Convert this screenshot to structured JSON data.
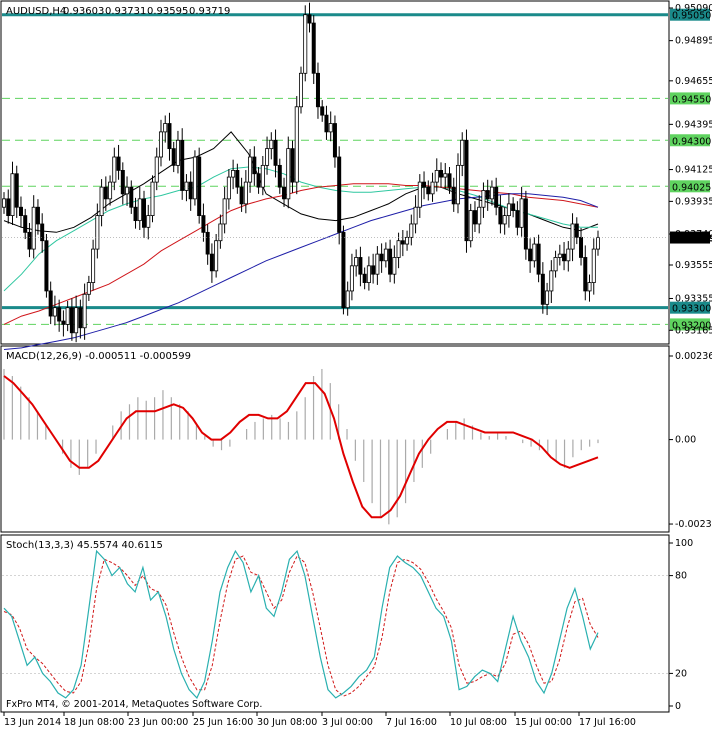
{
  "chart_data": {
    "type": "candlestick",
    "main": {
      "title": "AUDUSD,H4",
      "ohlc_header": [
        "0.93603",
        "0.93731",
        "0.93595",
        "0.93719"
      ],
      "ylim": [
        0.93095,
        0.9509
      ],
      "y_ticks": [
        "0.95090",
        "0.94895",
        "0.94655",
        "0.94395",
        "0.94125",
        "0.93935",
        "0.93740",
        "0.93555",
        "0.93355",
        "0.93165"
      ],
      "levels": [
        {
          "value": 0.9505,
          "label": "0.95050",
          "style": "thick",
          "color": "#1a8a8a"
        },
        {
          "value": 0.9455,
          "label": "0.94550",
          "style": "dashed",
          "color": "#5fd35f"
        },
        {
          "value": 0.943,
          "label": "0.94300",
          "style": "dashed",
          "color": "#5fd35f"
        },
        {
          "value": 0.94025,
          "label": "0.94025",
          "style": "dashed",
          "color": "#5fd35f"
        },
        {
          "value": 0.933,
          "label": "0.93300",
          "style": "thick",
          "color": "#1a8a8a"
        },
        {
          "value": 0.932,
          "label": "0.93200",
          "style": "dashed",
          "color": "#5fd35f"
        }
      ],
      "current_price": {
        "value": 0.93719,
        "label": "0.93719"
      },
      "close_series": [
        0.9395,
        0.9385,
        0.941,
        0.939,
        0.9385,
        0.9375,
        0.9365,
        0.939,
        0.938,
        0.937,
        0.934,
        0.9325,
        0.933,
        0.9322,
        0.932,
        0.933,
        0.9315,
        0.933,
        0.9318,
        0.9338,
        0.9345,
        0.9365,
        0.9385,
        0.9402,
        0.9395,
        0.9405,
        0.942,
        0.9412,
        0.9398,
        0.9402,
        0.939,
        0.9382,
        0.9395,
        0.9378,
        0.9385,
        0.9405,
        0.942,
        0.9435,
        0.944,
        0.9425,
        0.9415,
        0.943,
        0.94,
        0.9405,
        0.9395,
        0.942,
        0.9385,
        0.9375,
        0.9362,
        0.9352,
        0.937,
        0.938,
        0.9395,
        0.9408,
        0.9412,
        0.9402,
        0.9392,
        0.9405,
        0.942,
        0.941,
        0.9402,
        0.9415,
        0.9425,
        0.943,
        0.9415,
        0.9402,
        0.9395,
        0.9425,
        0.9405,
        0.945,
        0.947,
        0.9505,
        0.95,
        0.947,
        0.945,
        0.9445,
        0.9435,
        0.944,
        0.942,
        0.9375,
        0.933,
        0.934,
        0.9355,
        0.936,
        0.935,
        0.9345,
        0.9355,
        0.935,
        0.9362,
        0.9358,
        0.9365,
        0.935,
        0.936,
        0.937,
        0.9368,
        0.9372,
        0.938,
        0.939,
        0.9405,
        0.9402,
        0.9398,
        0.9405,
        0.9412,
        0.9408,
        0.941,
        0.9402,
        0.9392,
        0.9415,
        0.943,
        0.937,
        0.9388,
        0.938,
        0.939,
        0.94,
        0.9395,
        0.9402,
        0.939,
        0.938,
        0.9385,
        0.9392,
        0.9388,
        0.9378,
        0.9395,
        0.9365,
        0.9358,
        0.9368,
        0.935,
        0.9332,
        0.934,
        0.9352,
        0.936,
        0.9362,
        0.9358,
        0.9365,
        0.938,
        0.9372,
        0.936,
        0.934,
        0.9345,
        0.9365,
        0.9372
      ],
      "ma_series": [
        {
          "name": "",
          "color": "#000000",
          "values": [
            0.9382,
            0.9378,
            0.9376,
            0.9375,
            0.9378,
            0.9384,
            0.9392,
            0.9398,
            0.9404,
            0.9411,
            0.9418,
            0.942,
            0.9425,
            0.9435,
            0.9422,
            0.9398,
            0.9392,
            0.9386,
            0.9383,
            0.9382,
            0.9384,
            0.9388,
            0.9392,
            0.9398,
            0.9402,
            0.9402,
            0.9398,
            0.9395,
            0.9392,
            0.9389,
            0.9386,
            0.9382,
            0.9378,
            0.9376,
            0.938
          ]
        },
        {
          "name": "",
          "color": "#2fc7a0",
          "values": [
            0.934,
            0.935,
            0.9362,
            0.937,
            0.9376,
            0.9382,
            0.9388,
            0.9392,
            0.9395,
            0.9397,
            0.94,
            0.9402,
            0.9408,
            0.9413,
            0.9414,
            0.9413,
            0.941,
            0.9405,
            0.9402,
            0.94,
            0.9399,
            0.9399,
            0.94,
            0.9401,
            0.9402,
            0.9402,
            0.94,
            0.9397,
            0.9393,
            0.9389,
            0.9386,
            0.9383,
            0.938,
            0.9378,
            0.9378
          ]
        },
        {
          "name": "",
          "color": "#d0161b",
          "values": [
            0.932,
            0.9325,
            0.9328,
            0.9332,
            0.9336,
            0.934,
            0.9344,
            0.935,
            0.9356,
            0.9364,
            0.937,
            0.9376,
            0.9382,
            0.9388,
            0.9392,
            0.9395,
            0.9397,
            0.94,
            0.9402,
            0.9403,
            0.9404,
            0.9404,
            0.9404,
            0.9403,
            0.9403,
            0.9402,
            0.9401,
            0.94,
            0.9399,
            0.9398,
            0.9396,
            0.9395,
            0.9394,
            0.9392,
            0.939
          ]
        },
        {
          "name": "",
          "color": "#1f1fa8",
          "values": [
            0.9305,
            0.9306,
            0.9308,
            0.931,
            0.9312,
            0.9315,
            0.9318,
            0.9321,
            0.9325,
            0.9329,
            0.9333,
            0.9338,
            0.9343,
            0.9348,
            0.9353,
            0.9358,
            0.9362,
            0.9366,
            0.937,
            0.9374,
            0.9378,
            0.9382,
            0.9385,
            0.9388,
            0.9391,
            0.9393,
            0.9395,
            0.9396,
            0.9397,
            0.9398,
            0.9398,
            0.9397,
            0.9396,
            0.9394,
            0.939
          ]
        }
      ]
    },
    "macd": {
      "title": "MACD(12,26,9) -0.000511 -0.000599",
      "ylim": [
        -0.00239,
        0.002367
      ],
      "y_ticks": [
        "0.002367",
        "0.00",
        "-0.002391"
      ],
      "histogram": [
        0.002,
        0.0018,
        0.0015,
        0.0012,
        0.0008,
        0.0004,
        0.0,
        -0.0004,
        -0.0008,
        -0.001,
        -0.0008,
        -0.0004,
        0.0,
        0.0004,
        0.0008,
        0.001,
        0.0012,
        0.0011,
        0.0012,
        0.0014,
        0.0012,
        0.001,
        0.0008,
        0.0004,
        0.0001,
        -0.0002,
        -0.0003,
        -0.0002,
        0.0,
        0.0003,
        0.0005,
        0.0006,
        0.0007,
        0.0006,
        0.0005,
        0.0008,
        0.0012,
        0.0018,
        0.002,
        0.0016,
        0.001,
        0.0003,
        -0.0006,
        -0.0012,
        -0.0018,
        -0.0022,
        -0.0024,
        -0.0022,
        -0.0018,
        -0.0012,
        -0.0008,
        -0.0004,
        0.0,
        0.0003,
        0.0005,
        0.0006,
        0.0004,
        0.0002,
        0.0001,
        0.0002,
        0.0001,
        0.0,
        -0.0001,
        -0.0002,
        -0.0003,
        -0.0004,
        -0.0006,
        -0.0008,
        -0.0005,
        -0.0003,
        -0.0002,
        -0.0001
      ],
      "signal": [
        0.0018,
        0.0016,
        0.0013,
        0.001,
        0.0006,
        0.0002,
        -0.0002,
        -0.0006,
        -0.0008,
        -0.0008,
        -0.0006,
        -0.0002,
        0.0002,
        0.0006,
        0.0008,
        0.0008,
        0.0008,
        0.0009,
        0.001,
        0.0009,
        0.0006,
        0.0002,
        0.0,
        0.0,
        0.0002,
        0.0005,
        0.0007,
        0.0007,
        0.0006,
        0.0006,
        0.0008,
        0.0012,
        0.0016,
        0.0016,
        0.0013,
        0.0006,
        -0.0004,
        -0.0012,
        -0.0019,
        -0.0022,
        -0.0022,
        -0.002,
        -0.0016,
        -0.001,
        -0.0004,
        0.0,
        0.0003,
        0.0005,
        0.0005,
        0.0004,
        0.0003,
        0.0002,
        0.0002,
        0.0002,
        0.0002,
        0.0001,
        0.0,
        -0.0002,
        -0.0005,
        -0.0007,
        -0.0008,
        -0.0007,
        -0.0006,
        -0.0005
      ]
    },
    "stoch": {
      "title": "Stoch(13,3,3) 45.5574 40.6115",
      "ylim": [
        0,
        100
      ],
      "y_ticks": [
        "100",
        "80",
        "20",
        "0"
      ],
      "main_line": [
        60,
        55,
        40,
        25,
        30,
        20,
        15,
        8,
        5,
        10,
        25,
        60,
        95,
        90,
        80,
        85,
        75,
        70,
        85,
        65,
        70,
        55,
        35,
        20,
        10,
        5,
        15,
        40,
        70,
        85,
        95,
        88,
        70,
        80,
        60,
        55,
        70,
        90,
        95,
        80,
        55,
        30,
        10,
        5,
        8,
        12,
        18,
        22,
        30,
        60,
        85,
        92,
        88,
        85,
        80,
        70,
        60,
        55,
        40,
        10,
        12,
        18,
        22,
        20,
        15,
        35,
        55,
        40,
        30,
        15,
        8,
        20,
        40,
        60,
        72,
        55,
        35,
        45
      ],
      "signal_line": [
        58,
        56,
        48,
        35,
        30,
        26,
        20,
        14,
        9,
        8,
        15,
        38,
        72,
        90,
        88,
        85,
        80,
        74,
        80,
        72,
        70,
        62,
        45,
        30,
        18,
        10,
        10,
        25,
        52,
        75,
        90,
        92,
        82,
        80,
        70,
        60,
        65,
        82,
        92,
        88,
        70,
        48,
        25,
        10,
        6,
        8,
        12,
        18,
        24,
        42,
        70,
        88,
        90,
        88,
        84,
        76,
        66,
        58,
        48,
        25,
        14,
        15,
        18,
        20,
        18,
        26,
        44,
        46,
        38,
        25,
        14,
        15,
        28,
        48,
        64,
        66,
        50,
        42
      ]
    },
    "x_ticks": [
      "13 Jun 2014",
      "18 Jun 08:00",
      "23 Jun 00:00",
      "25 Jun 16:00",
      "30 Jun 08:00",
      "3 Jul 00:00",
      "7 Jul 16:00",
      "10 Jul 08:00",
      "15 Jul 00:00",
      "17 Jul 16:00"
    ],
    "footer": "FxPro MT4, © 2001-2014, MetaQuotes Software Corp."
  },
  "colors": {
    "candle": "#000000",
    "macd_hist": "#aaaaaa",
    "macd_signal": "#e00000",
    "stoch_main": "#2ab0b0",
    "stoch_signal": "#d01818",
    "level_thick": "#1a8a8a",
    "level_dashed": "#5fd35f"
  }
}
